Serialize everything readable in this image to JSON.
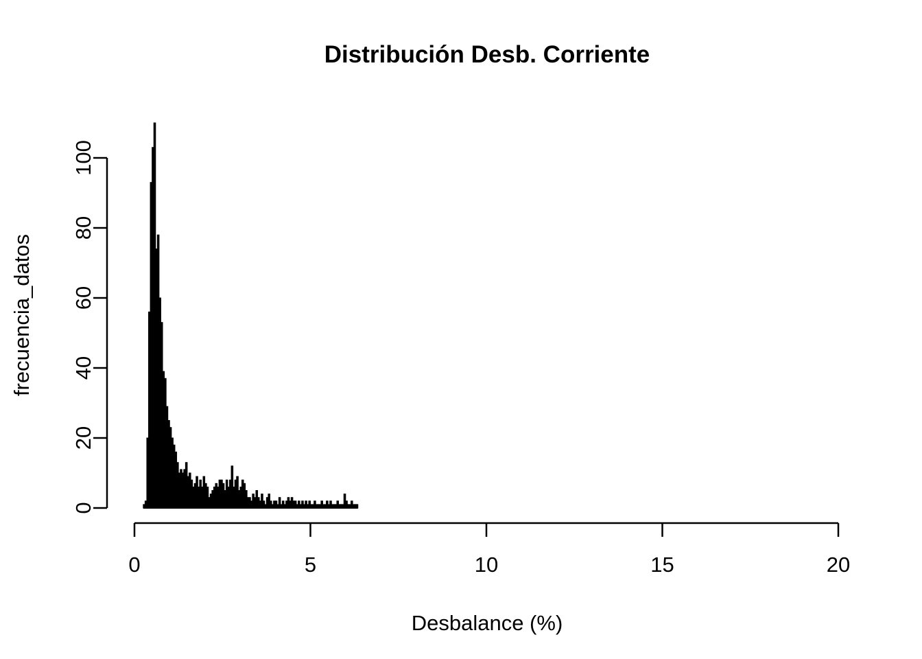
{
  "window": {
    "background_color": "#ffffff",
    "foreground_color": "#000000"
  },
  "chart_data": {
    "type": "bar",
    "chart_kind": "histogram",
    "title": "Distribución Desb. Corriente",
    "xlabel": "Desbalance (%)",
    "ylabel": "frecuencia_datos",
    "xlim": [
      0,
      20
    ],
    "ylim": [
      0,
      100
    ],
    "x_ticks": [
      0,
      5,
      10,
      15,
      20
    ],
    "x_tick_labels": [
      "0",
      "5",
      "10",
      "15",
      "20"
    ],
    "y_ticks": [
      0,
      20,
      40,
      60,
      80,
      100
    ],
    "y_tick_labels": [
      "0",
      "20",
      "40",
      "60",
      "80",
      "100"
    ],
    "grid": false,
    "legend": null,
    "bar_color": "#000000",
    "bar_border_color": "#000000",
    "axis_color": "#000000",
    "peak_value": 110,
    "data_range": [
      0.25,
      6.35
    ],
    "bin_start": 0.25,
    "bin_width": 0.05,
    "values": [
      1,
      2,
      20,
      56,
      93,
      103,
      110,
      74,
      78,
      60,
      53,
      39,
      37,
      29,
      25,
      23,
      20,
      18,
      16,
      13,
      10,
      11,
      10,
      11,
      13,
      9,
      10,
      8,
      6,
      7,
      9,
      6,
      8,
      6,
      9,
      7,
      6,
      3,
      4,
      5,
      6,
      7,
      6,
      8,
      8,
      7,
      5,
      8,
      6,
      8,
      12,
      6,
      8,
      9,
      5,
      6,
      8,
      7,
      5,
      3,
      3,
      2,
      4,
      3,
      5,
      3,
      2,
      4,
      2,
      1,
      3,
      4,
      2,
      1,
      2,
      2,
      1,
      3,
      1,
      2,
      1,
      2,
      3,
      2,
      3,
      2,
      2,
      1,
      2,
      1,
      2,
      1,
      2,
      1,
      2,
      1,
      1,
      2,
      1,
      1,
      1,
      2,
      1,
      1,
      2,
      1,
      2,
      1,
      1,
      1,
      2,
      1,
      1,
      1,
      4,
      2,
      1,
      1,
      2,
      1,
      1,
      1
    ]
  }
}
